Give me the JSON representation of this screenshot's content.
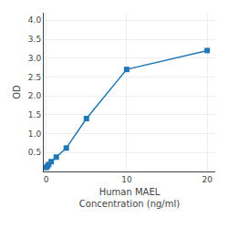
{
  "chart_data": {
    "type": "line",
    "x": [
      0,
      0.156,
      0.313,
      0.625,
      1.25,
      2.5,
      5,
      10,
      20
    ],
    "values": [
      0.105,
      0.14,
      0.185,
      0.26,
      0.38,
      0.62,
      1.4,
      2.7,
      3.2
    ],
    "xlabel": "Human MAEL\nConcentration (ng/ml)",
    "ylabel": "OD",
    "xlim": [
      -0.3,
      21
    ],
    "ylim": [
      0,
      4.2
    ],
    "xticks": [
      0,
      10,
      20
    ],
    "yticks": [
      0.5,
      {
        "value": 1,
        "label": "1.0"
      },
      1.5,
      {
        "value": 2,
        "label": "2.0"
      },
      2.5,
      {
        "value": 3,
        "label": "3.0"
      },
      3.5,
      {
        "value": 4,
        "label": "4.0"
      }
    ],
    "grid": true,
    "marker": "square"
  }
}
